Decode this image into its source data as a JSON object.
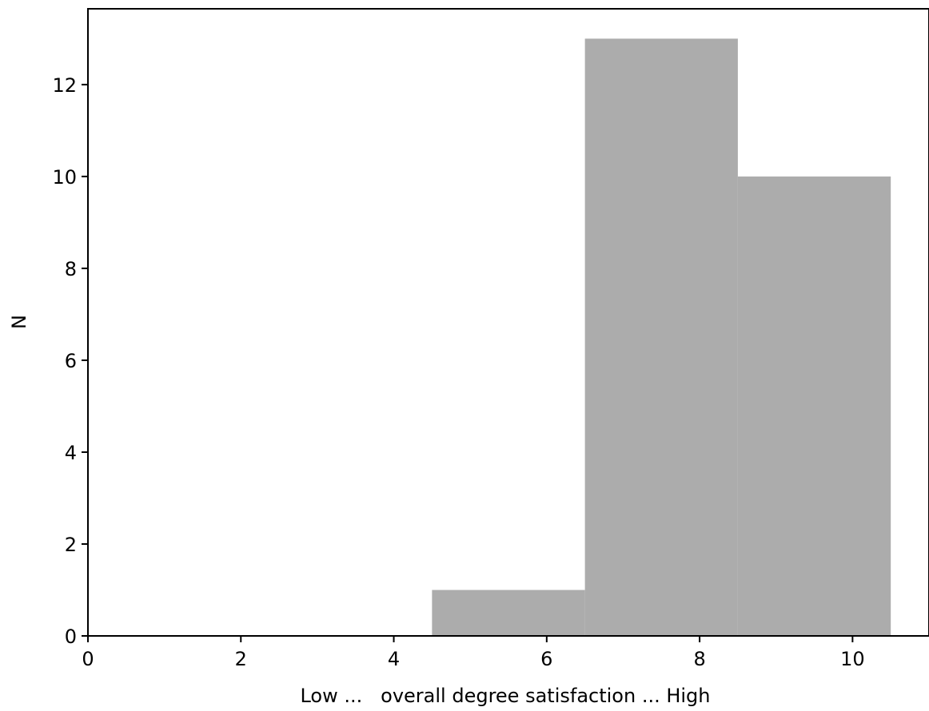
{
  "chart_data": {
    "type": "bar",
    "subtype": "histogram",
    "bins": [
      {
        "start": 4.5,
        "end": 6.5,
        "count": 1
      },
      {
        "start": 6.5,
        "end": 8.5,
        "count": 13
      },
      {
        "start": 8.5,
        "end": 10.5,
        "count": 10
      }
    ],
    "xlabel": "Low ...   overall degree satisfaction ... High",
    "ylabel": "N",
    "xlim": [
      0,
      11
    ],
    "ylim": [
      0,
      13.65
    ],
    "xticks": [
      0,
      2,
      4,
      6,
      8,
      10
    ],
    "yticks": [
      0,
      2,
      4,
      6,
      8,
      10,
      12
    ],
    "bar_color": "#acacac",
    "grid": false
  }
}
